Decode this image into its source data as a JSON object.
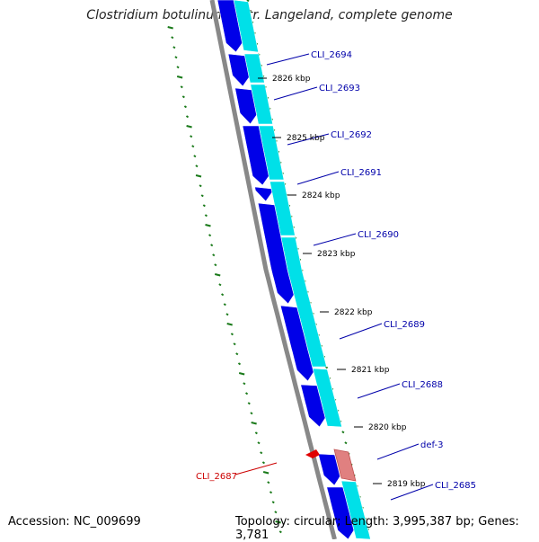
{
  "title": "Clostridium botulinum F str. Langeland, complete genome",
  "footer": {
    "accession": "Accession: NC_009699",
    "summary": "Topology: circular; Length: 3,995,387 bp; Genes: 3,781"
  },
  "colors": {
    "cds_forward": "#0000e8",
    "cds_forward_lane": "#00e0e8",
    "trna_gene": "#e08080",
    "gene_red": "#e00000",
    "gc_skew_ticks": "#1a7a1a",
    "backbone": "#888888",
    "label_blue": "#0000aa",
    "label_red": "#cc0000"
  },
  "gene_labels": [
    {
      "id": "cli-2694",
      "text": "CLI_2694",
      "color": "blue"
    },
    {
      "id": "cli-2693",
      "text": "CLI_2693",
      "color": "blue"
    },
    {
      "id": "cli-2692",
      "text": "CLI_2692",
      "color": "blue"
    },
    {
      "id": "cli-2691",
      "text": "CLI_2691",
      "color": "blue"
    },
    {
      "id": "cli-2690",
      "text": "CLI_2690",
      "color": "blue"
    },
    {
      "id": "cli-2689",
      "text": "CLI_2689",
      "color": "blue"
    },
    {
      "id": "cli-2688",
      "text": "CLI_2688",
      "color": "blue"
    },
    {
      "id": "def-3",
      "text": "def-3",
      "color": "blue"
    },
    {
      "id": "cli-2685",
      "text": "CLI_2685",
      "color": "blue"
    },
    {
      "id": "cli-2687",
      "text": "CLI_2687",
      "color": "red"
    }
  ],
  "kbp_ticks": [
    "2826 kbp",
    "2825 kbp",
    "2824 kbp",
    "2823 kbp",
    "2822 kbp",
    "2821 kbp",
    "2820 kbp",
    "2819 kbp"
  ]
}
